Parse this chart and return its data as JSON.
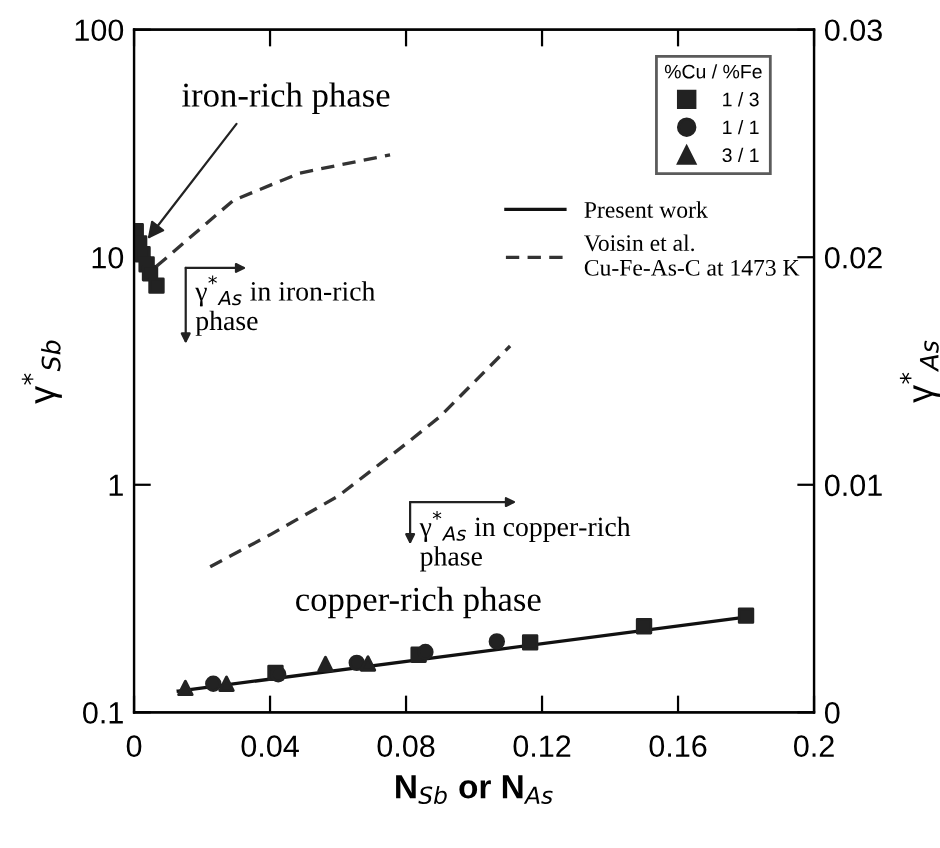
{
  "chart_data": {
    "type": "scatter",
    "xlabel": "N$_{Sb}$ or N$_{As}$",
    "ylabel": "γ$^{*}$$_{Sb}$",
    "y2label": "γ$^{*}$$_{As}$",
    "legend_title": "%Cu / %Fe",
    "log": "y",
    "grid": false,
    "legend": "top right",
    "xlim": [
      0,
      0.2
    ],
    "xticks": [
      0,
      0.04,
      0.08,
      0.12,
      0.16,
      0.2
    ],
    "ylim": [
      0.1,
      100
    ],
    "yticks": [
      0.1,
      1,
      10,
      100
    ],
    "y2lim": [
      0,
      0.03
    ],
    "y2ticks": [
      0,
      0.01,
      0.02,
      0.03
    ],
    "series": [
      {
        "name": "1 / 3",
        "marker": "square",
        "color": "#222222",
        "x": [
          0.0416,
          0.0837,
          0.1165,
          0.15,
          0.18
        ],
        "values": [
          0.149,
          0.179,
          0.203,
          0.239,
          0.266
        ]
      },
      {
        "name": "1 / 1",
        "marker": "circle",
        "color": "#222222",
        "x": [
          0.0233,
          0.0424,
          0.0655,
          0.0857,
          0.1067
        ],
        "values": [
          0.1335,
          0.147,
          0.165,
          0.184,
          0.205
        ]
      },
      {
        "name": "3 / 1",
        "marker": "triangle",
        "color": "#222222",
        "x": [
          0.0151,
          0.0272,
          0.0563,
          0.0688
        ],
        "values": [
          0.128,
          0.1335,
          0.163,
          0.164
        ]
      },
      {
        "marker": "square",
        "color": "#222222",
        "x": [
          0.0005,
          0.0015,
          0.0025,
          0.0037,
          0.0047,
          0.0066
        ],
        "values": [
          13,
          11.5,
          10.3,
          9.3,
          8.5,
          7.5
        ]
      },
      {
        "name": "Present work",
        "type": "line",
        "line_style": "solid",
        "color": "#111111",
        "x": [
          0.013,
          0.18
        ],
        "values": [
          0.124,
          0.262
        ]
      },
      {
        "name": "Voisin et al.\nCu-Fe-As-C at 1473 K",
        "type": "line",
        "line_style": "dashed",
        "axis": "y2",
        "color": "#333333",
        "x": [
          0.0066,
          0.0292,
          0.0488,
          0.0753
        ],
        "values": [
          0.0196,
          0.0225,
          0.0237,
          0.0245
        ]
      },
      {
        "type": "line",
        "line_style": "dashed",
        "axis": "y2",
        "color": "#333333",
        "x": [
          0.0224,
          0.04,
          0.06,
          0.08,
          0.09,
          0.1106
        ],
        "values": [
          0.0064,
          0.0078,
          0.0095,
          0.0118,
          0.013,
          0.0161
        ]
      }
    ],
    "annotations": [
      {
        "text": "iron-rich phase",
        "x": 0.002,
        "y": 11
      },
      "γ$^{*}$$_{As}$ in iron-rich\nphase",
      "γ$^{*}$$_{As}$ in copper-rich\nphase",
      "copper-rich phase"
    ]
  }
}
